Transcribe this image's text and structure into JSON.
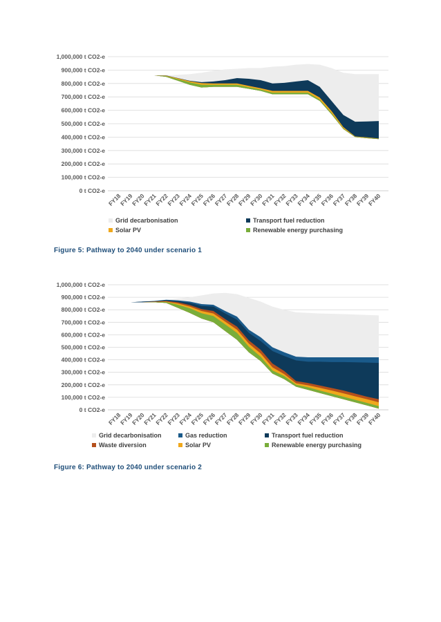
{
  "captions": [
    "Figure 5: Pathway to 2040 under scenario 1",
    "Figure 6: Pathway to 2040 under scenario 2"
  ],
  "chart_data": [
    {
      "type": "area",
      "stacked": "cumulative-bands",
      "title": "",
      "xlabel": "",
      "ylabel": "",
      "ylim": [
        0,
        1000000
      ],
      "y_tick_step": 100000,
      "y_tick_suffix": " t CO2-e",
      "grid": true,
      "legend_position": "bottom",
      "x": [
        "FY18",
        "FY19",
        "FY20",
        "FY21",
        "FY22",
        "FY23",
        "FY24",
        "FY25",
        "FY26",
        "FY27",
        "FY28",
        "FY29",
        "FY30",
        "FY31",
        "FY32",
        "FY33",
        "FY34",
        "FY35",
        "FY36",
        "FY37",
        "FY38",
        "FY39",
        "FY40"
      ],
      "baseline": [
        860000,
        860000,
        860000,
        860000,
        850000,
        820000,
        790000,
        770000,
        775000,
        775000,
        775000,
        760000,
        745000,
        720000,
        720000,
        720000,
        720000,
        670000,
        570000,
        460000,
        400000,
        392000,
        385000
      ],
      "bands": [
        {
          "name": "Grid decarbonisation",
          "color": "#ededed",
          "top": [
            860000,
            860000,
            860000,
            860000,
            860000,
            865000,
            870000,
            880000,
            895000,
            905000,
            910000,
            915000,
            915000,
            925000,
            930000,
            940000,
            945000,
            940000,
            915000,
            880000,
            870000,
            870000,
            870000
          ]
        },
        {
          "name": "Transport fuel reduction",
          "color": "#0e3a5a",
          "top": [
            860000,
            860000,
            860000,
            860000,
            860000,
            840000,
            820000,
            810000,
            815000,
            825000,
            840000,
            835000,
            825000,
            800000,
            805000,
            815000,
            825000,
            775000,
            670000,
            565000,
            515000,
            517000,
            520000
          ]
        },
        {
          "name": "Solar PV",
          "color": "#f0a81c",
          "top": [
            860000,
            860000,
            860000,
            860000,
            858000,
            838000,
            817000,
            803000,
            800000,
            800000,
            800000,
            782000,
            765000,
            745000,
            745000,
            745000,
            745000,
            695000,
            595000,
            475000,
            405000,
            398000,
            390000
          ]
        },
        {
          "name": "Renewable energy purchasing",
          "color": "#79ad3a",
          "top": [
            860000,
            860000,
            860000,
            860000,
            855000,
            832000,
            808000,
            790000,
            790000,
            790000,
            790000,
            772000,
            755000,
            732000,
            732000,
            732000,
            732000,
            680000,
            580000,
            465000,
            403000,
            395000,
            388000
          ]
        }
      ],
      "legend": [
        {
          "name": "Grid decarbonisation",
          "color": "#ededed"
        },
        {
          "name": "Transport fuel reduction",
          "color": "#0e3a5a"
        },
        {
          "name": "Solar PV",
          "color": "#f0a81c"
        },
        {
          "name": "Renewable energy purchasing",
          "color": "#79ad3a"
        }
      ]
    },
    {
      "type": "area",
      "stacked": "cumulative-bands",
      "title": "",
      "xlabel": "",
      "ylabel": "",
      "ylim": [
        0,
        1000000
      ],
      "y_tick_step": 100000,
      "y_tick_suffix": " t CO2-e",
      "grid": true,
      "legend_position": "bottom",
      "x": [
        "FY18",
        "FY19",
        "FY20",
        "FY21",
        "FY22",
        "FY23",
        "FY24",
        "FY25",
        "FY26",
        "FY27",
        "FY28",
        "FY29",
        "FY30",
        "FY31",
        "FY32",
        "FY33",
        "FY34",
        "FY35",
        "FY36",
        "FY37",
        "FY38",
        "FY39",
        "FY40"
      ],
      "baseline": [
        860000,
        860000,
        860000,
        860000,
        855000,
        815000,
        775000,
        730000,
        700000,
        630000,
        560000,
        460000,
        390000,
        290000,
        245000,
        185000,
        160000,
        135000,
        110000,
        85000,
        60000,
        35000,
        10000
      ],
      "bands": [
        {
          "name": "Grid decarbonisation",
          "color": "#ededed",
          "top": [
            860000,
            860000,
            860000,
            870000,
            880000,
            890000,
            900000,
            915000,
            930000,
            935000,
            925000,
            895000,
            865000,
            825000,
            800000,
            780000,
            775000,
            770000,
            768000,
            765000,
            762000,
            758000,
            755000
          ]
        },
        {
          "name": "Gas reduction",
          "color": "#1a5a8a",
          "top": [
            860000,
            860000,
            865000,
            870000,
            880000,
            875000,
            865000,
            845000,
            840000,
            790000,
            745000,
            640000,
            580000,
            500000,
            460000,
            425000,
            420000,
            420000,
            420000,
            420000,
            420000,
            420000,
            420000
          ]
        },
        {
          "name": "Transport fuel reduction",
          "color": "#0e3a5a",
          "top": [
            860000,
            860000,
            865000,
            868000,
            875000,
            868000,
            855000,
            830000,
            825000,
            770000,
            720000,
            615000,
            550000,
            470000,
            430000,
            395000,
            385000,
            385000,
            382000,
            382000,
            380000,
            378000,
            375000
          ]
        },
        {
          "name": "Waste diversion",
          "color": "#b5501c",
          "top": [
            860000,
            860000,
            860000,
            865000,
            870000,
            860000,
            838000,
            805000,
            790000,
            725000,
            665000,
            555000,
            480000,
            370000,
            310000,
            230000,
            215000,
            195000,
            175000,
            155000,
            130000,
            105000,
            85000
          ]
        },
        {
          "name": "Solar PV",
          "color": "#f0a81c",
          "top": [
            860000,
            860000,
            860000,
            863000,
            865000,
            850000,
            825000,
            790000,
            770000,
            705000,
            640000,
            530000,
            450000,
            340000,
            285000,
            212000,
            196000,
            176000,
            155000,
            132000,
            108000,
            85000,
            60000
          ]
        },
        {
          "name": "Renewable energy purchasing",
          "color": "#79ad3a",
          "top": [
            860000,
            860000,
            860000,
            862000,
            862000,
            840000,
            812000,
            772000,
            750000,
            683000,
            615000,
            505000,
            425000,
            315000,
            270000,
            200000,
            180000,
            155000,
            130000,
            105000,
            80000,
            55000,
            30000
          ]
        }
      ],
      "legend": [
        {
          "name": "Grid decarbonisation",
          "color": "#ededed"
        },
        {
          "name": "Gas reduction",
          "color": "#1a5a8a"
        },
        {
          "name": "Transport fuel reduction",
          "color": "#0e3a5a"
        },
        {
          "name": "Waste diversion",
          "color": "#b5501c"
        },
        {
          "name": "Solar PV",
          "color": "#f0a81c"
        },
        {
          "name": "Renewable energy purchasing",
          "color": "#79ad3a"
        }
      ]
    }
  ]
}
